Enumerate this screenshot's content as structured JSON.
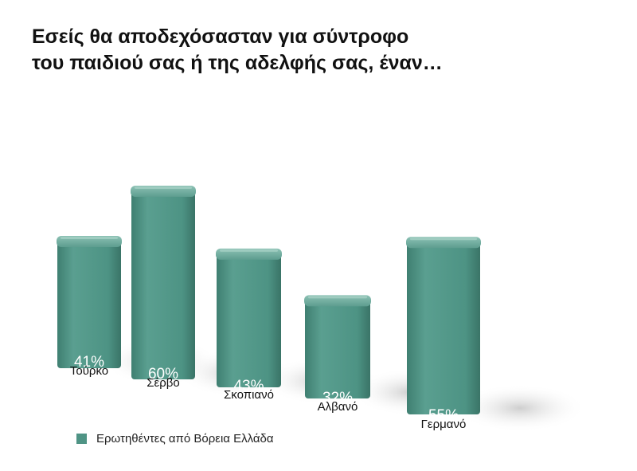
{
  "chart_data": {
    "type": "bar",
    "title": [
      "Εσείς θα αποδεχόσασταν για σύντροφο",
      "του παιδιού σας ή της αδελφής σας, έναν…"
    ],
    "categories": [
      "Τούρκο",
      "Σέρβο",
      "Σκοπιανό",
      "Αλβανό",
      "Γερμανό"
    ],
    "series": [
      {
        "name": "Ερωτηθέντες από Βόρεια Ελλάδα",
        "values": [
          41,
          60,
          43,
          32,
          55
        ],
        "labels": [
          "41%",
          "60%",
          "43%",
          "32%",
          "55%"
        ]
      }
    ],
    "unit": "%",
    "style": "3d-column",
    "legend": "bottom-left",
    "grid": false
  },
  "colors": {
    "bar": "#4f9485",
    "bar_top": "#72ad9f",
    "bar_side": "#3a7467",
    "shadow": "#cfcfcf"
  }
}
